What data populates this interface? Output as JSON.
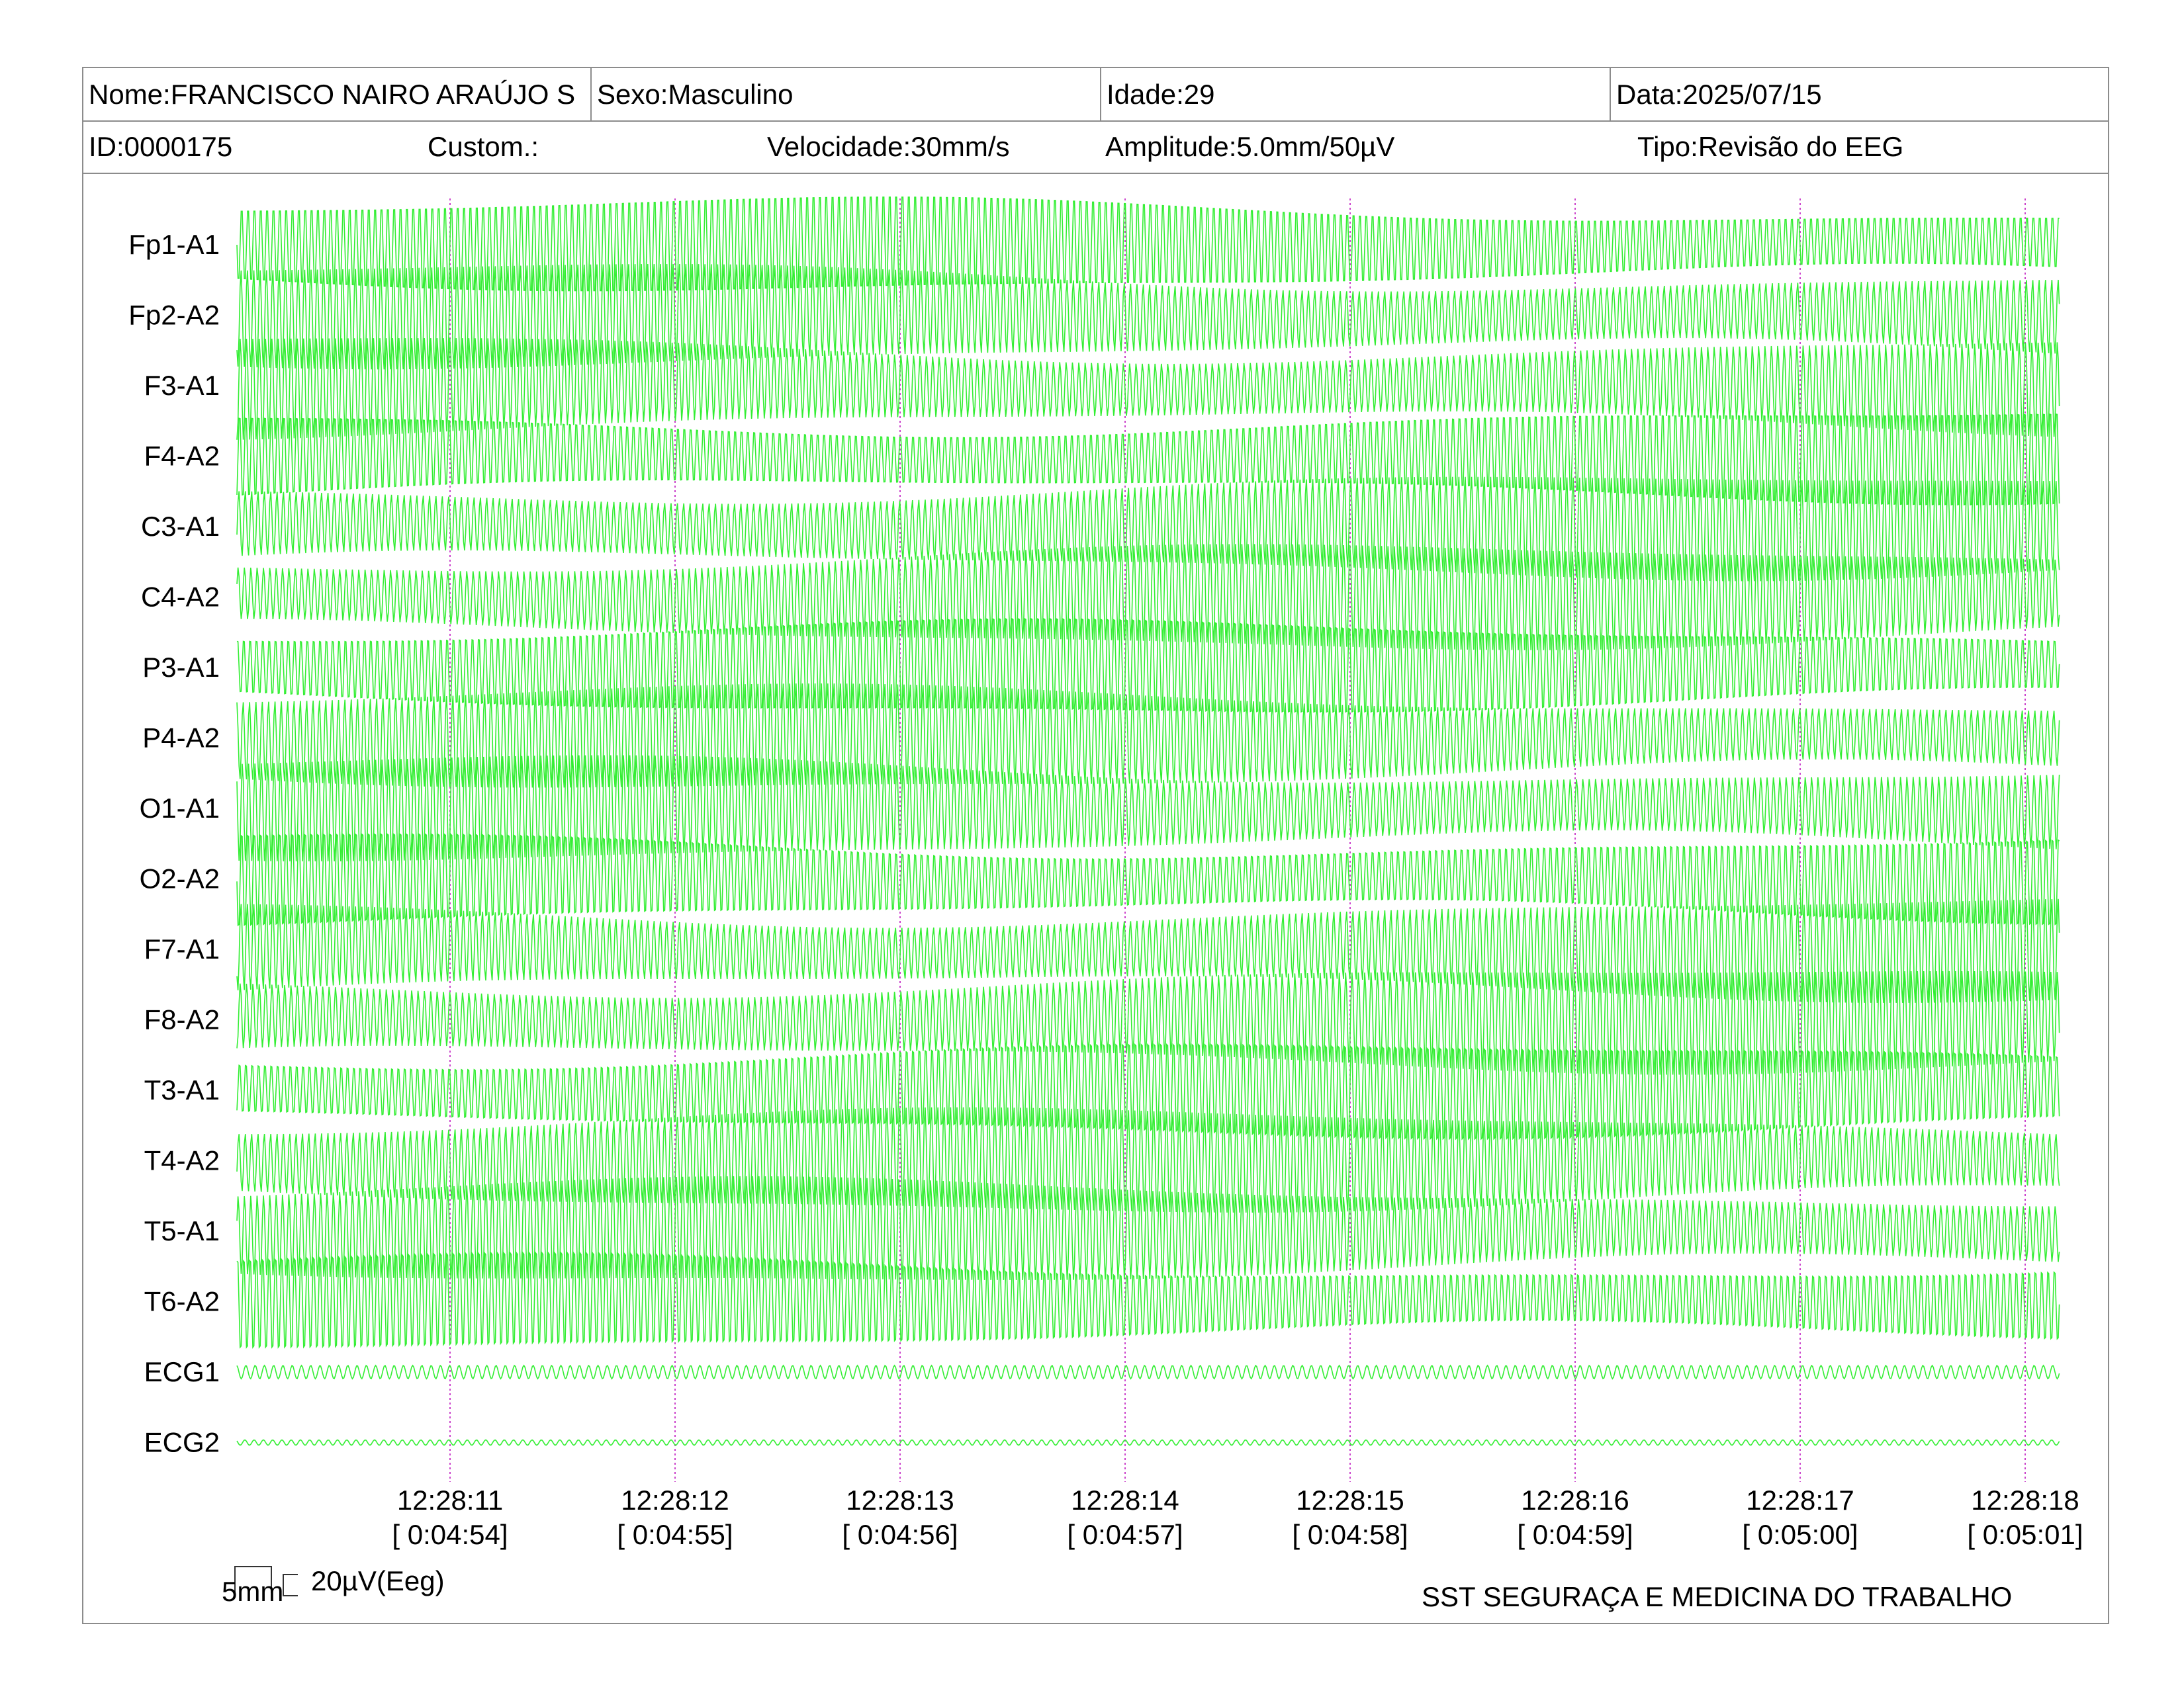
{
  "header": {
    "name": "Nome:FRANCISCO NAIRO ARAÚJO S",
    "sex": "Sexo:Masculino",
    "age": "Idade:29",
    "date": "Data:2025/07/15",
    "id": "ID:0000175",
    "custom": "Custom.:",
    "speed": "Velocidade:30mm/s",
    "amplitude": "Amplitude:5.0mm/50µV",
    "type": "Tipo:Revisão do EEG"
  },
  "channels": [
    "Fp1-A1",
    "Fp2-A2",
    "F3-A1",
    "F4-A2",
    "C3-A1",
    "C4-A2",
    "P3-A1",
    "P4-A2",
    "O1-A1",
    "O2-A2",
    "F7-A1",
    "F8-A2",
    "T3-A1",
    "T4-A2",
    "T5-A1",
    "T6-A2",
    "ECG1",
    "ECG2"
  ],
  "time_markers": [
    {
      "clock": "12:28:11",
      "elapsed": "[ 0:04:54]"
    },
    {
      "clock": "12:28:12",
      "elapsed": "[ 0:04:55]"
    },
    {
      "clock": "12:28:13",
      "elapsed": "[ 0:04:56]"
    },
    {
      "clock": "12:28:14",
      "elapsed": "[ 0:04:57]"
    },
    {
      "clock": "12:28:15",
      "elapsed": "[ 0:04:58]"
    },
    {
      "clock": "12:28:16",
      "elapsed": "[ 0:04:59]"
    },
    {
      "clock": "12:28:17",
      "elapsed": "[ 0:05:00]"
    },
    {
      "clock": "12:28:18",
      "elapsed": "[ 0:05:01]"
    }
  ],
  "calibration": {
    "time_scale": "5mm",
    "amplitude_scale": "20µV(Eeg)"
  },
  "footer": {
    "organization": "SST SEGURAÇA E MEDICINA DO TRABALHO"
  },
  "colors": {
    "trace": "#33ee33",
    "marker_line": "#cc44cc",
    "border": "#8c8c8c"
  }
}
